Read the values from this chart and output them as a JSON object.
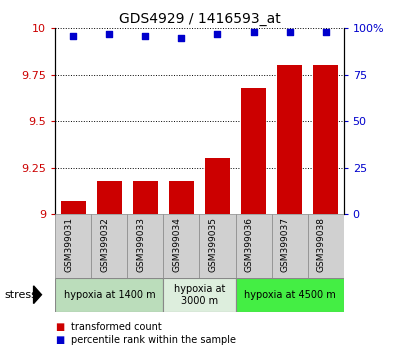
{
  "title": "GDS4929 / 1416593_at",
  "samples": [
    "GSM399031",
    "GSM399032",
    "GSM399033",
    "GSM399034",
    "GSM399035",
    "GSM399036",
    "GSM399037",
    "GSM399038"
  ],
  "bar_values": [
    9.07,
    9.18,
    9.18,
    9.18,
    9.3,
    9.68,
    9.8,
    9.8
  ],
  "scatter_values": [
    96,
    97,
    96,
    95,
    97,
    98,
    98,
    98
  ],
  "bar_color": "#cc0000",
  "scatter_color": "#0000cc",
  "ylim_left": [
    9.0,
    10.0
  ],
  "ylim_right": [
    0,
    100
  ],
  "yticks_left": [
    9.0,
    9.25,
    9.5,
    9.75,
    10.0
  ],
  "ytick_labels_left": [
    "9",
    "9.25",
    "9.5",
    "9.75",
    "10"
  ],
  "yticks_right": [
    0,
    25,
    50,
    75,
    100
  ],
  "ytick_labels_right": [
    "0",
    "25",
    "50",
    "75",
    "100%"
  ],
  "groups": [
    {
      "label": "hypoxia at 1400 m",
      "start": 0,
      "end": 2,
      "color": "#cceecc"
    },
    {
      "label": "hypoxia at\n3000 m",
      "start": 3,
      "end": 4,
      "color": "#ddeedd"
    },
    {
      "label": "hypoxia at 4500 m",
      "start": 5,
      "end": 7,
      "color": "#44ee44"
    }
  ],
  "stress_label": "stress",
  "legend_bar_label": "transformed count",
  "legend_scatter_label": "percentile rank within the sample",
  "grid_color": "#000000",
  "background_color": "#ffffff",
  "label_area_color": "#d0d0d0"
}
